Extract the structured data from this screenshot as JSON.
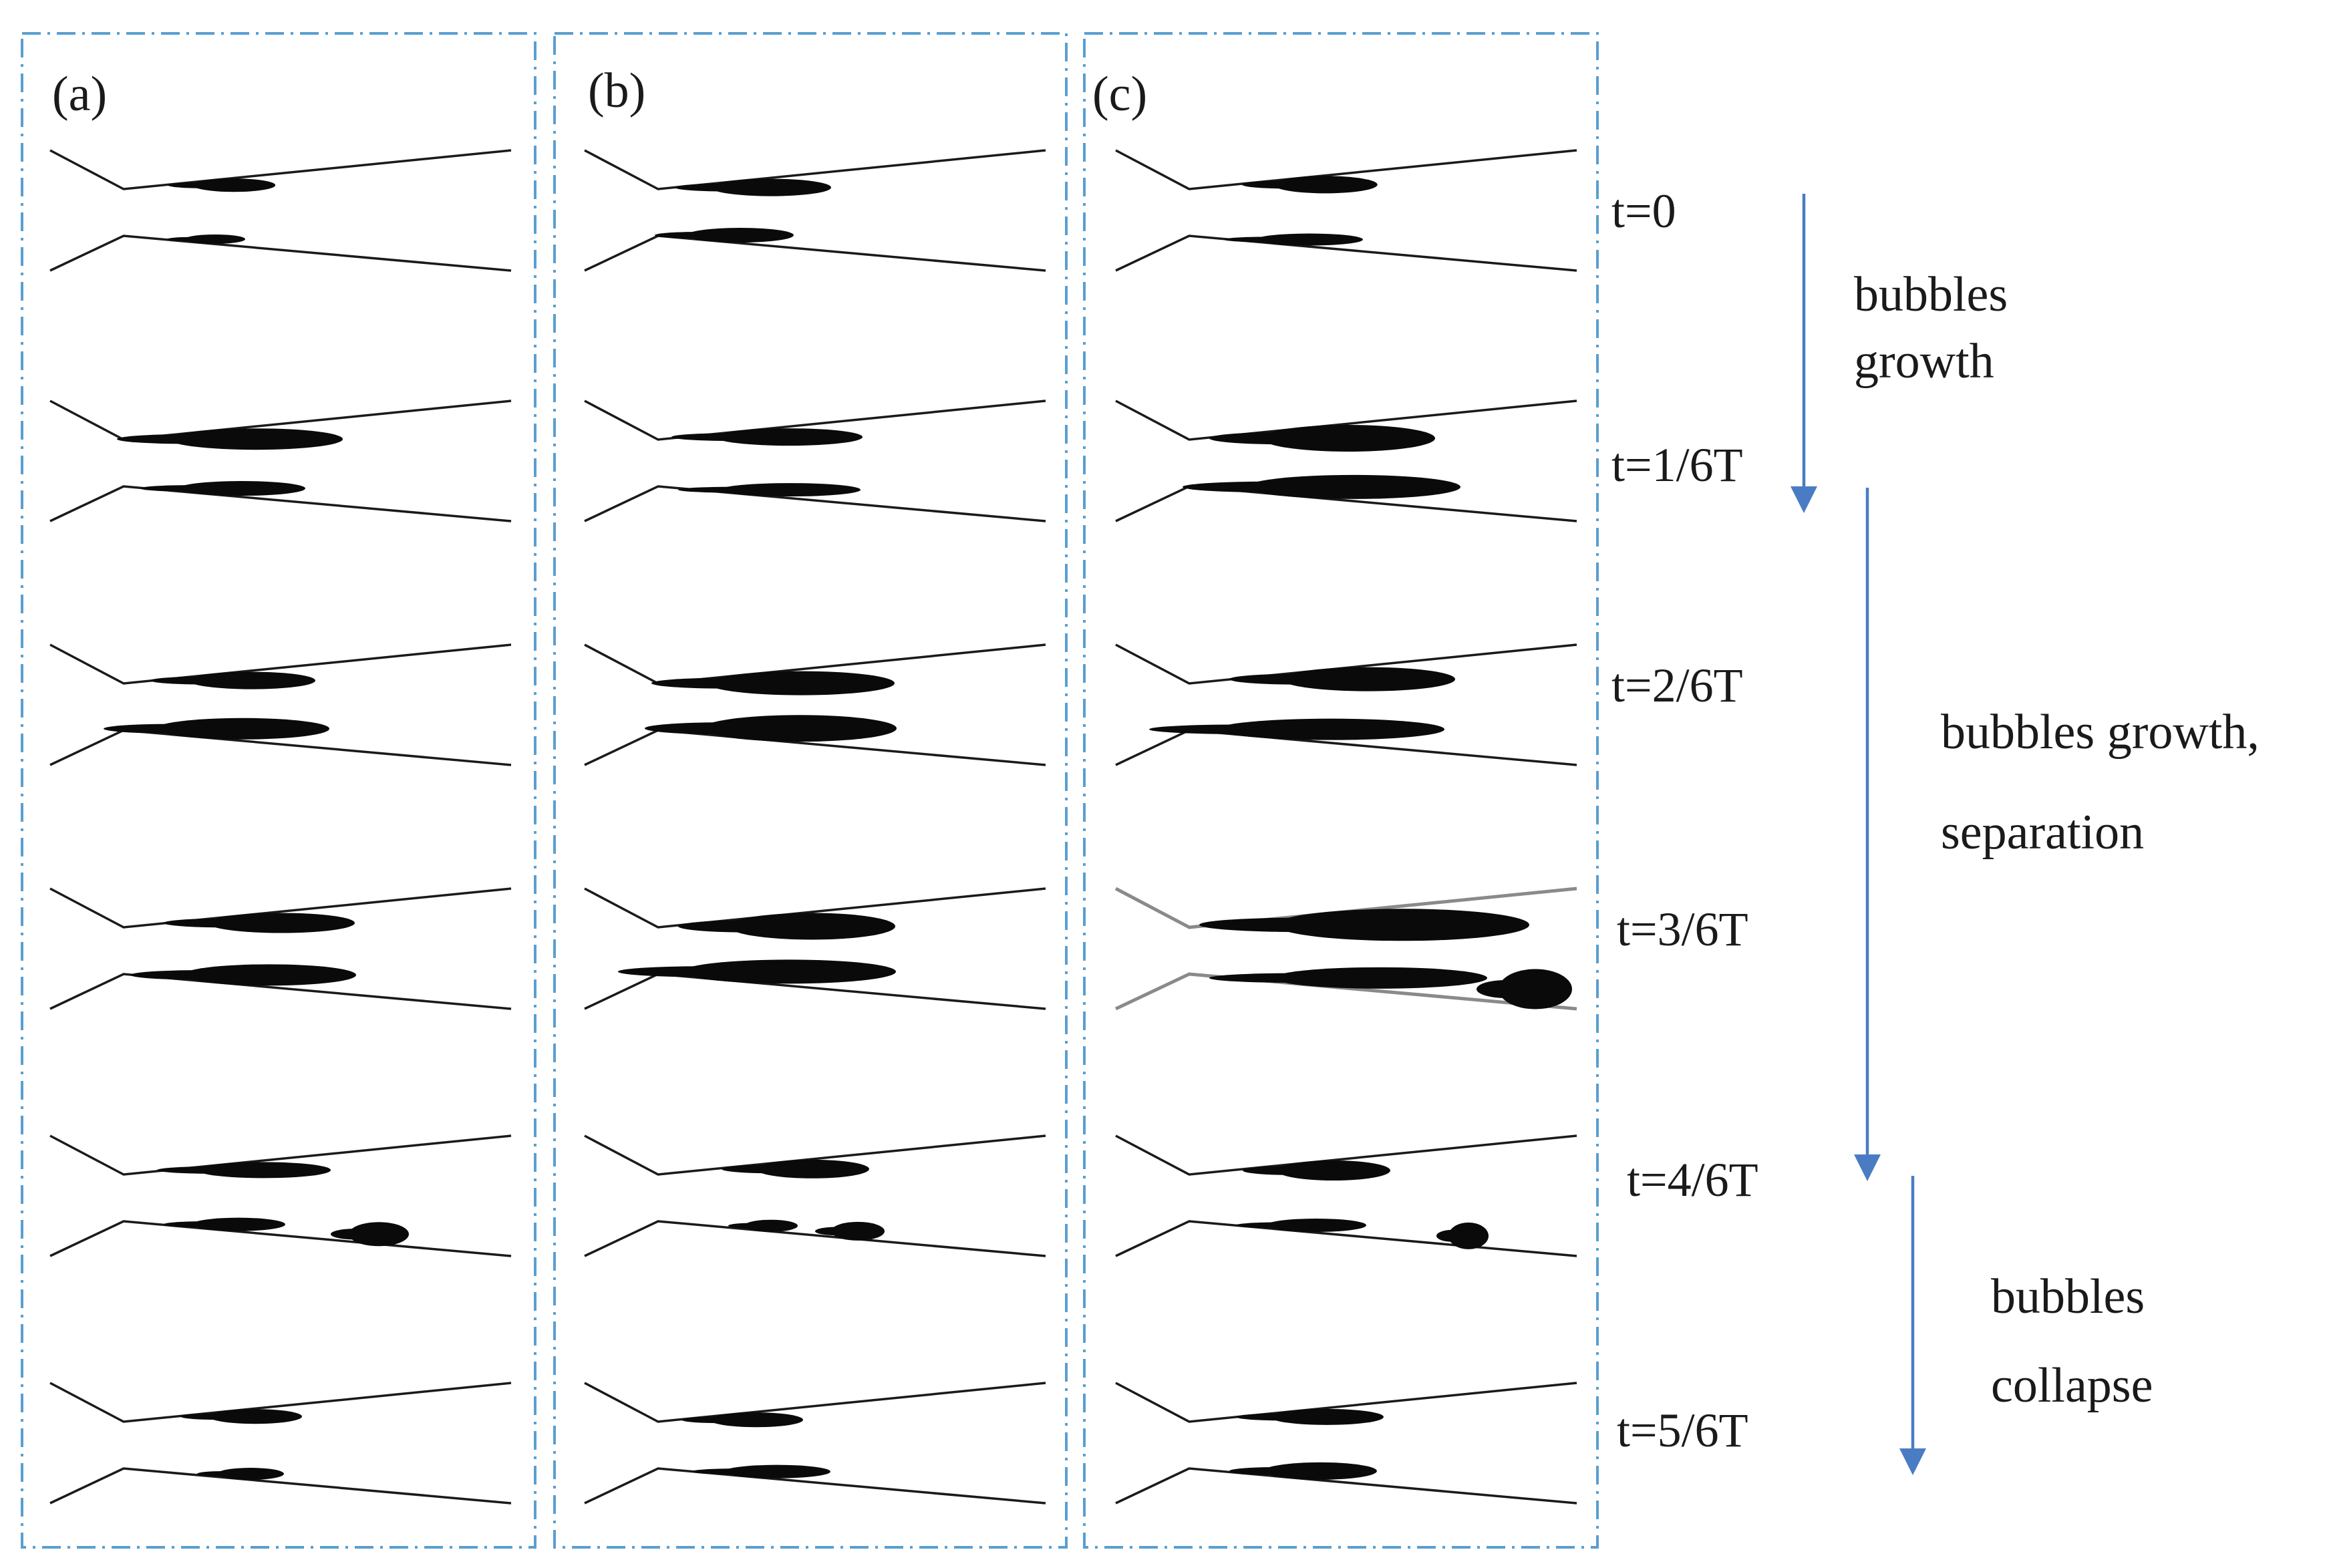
{
  "panels": [
    {
      "label": "(a)"
    },
    {
      "label": "(b)"
    },
    {
      "label": "(c)"
    }
  ],
  "time_labels": [
    "t=0",
    "t=1/6T",
    "t=2/6T",
    "t=3/6T",
    "t=4/6T",
    "t=5/6T"
  ],
  "phases": [
    {
      "lines": [
        "bubbles",
        "growth"
      ]
    },
    {
      "lines": [
        "bubbles growth,",
        "separation"
      ]
    },
    {
      "lines": [
        "bubbles",
        "collapse"
      ]
    }
  ],
  "colors": {
    "frame": "#5a9fd0",
    "arrow": "#4a7cc4",
    "bubble": "#0a0a0a",
    "wall": "#1a1a1a"
  }
}
